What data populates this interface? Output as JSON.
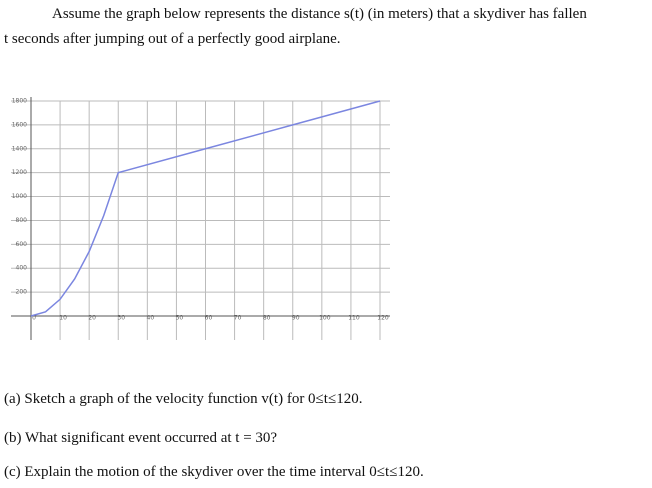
{
  "intro": [
    "Assume the graph below represents the distance s(t) (in meters) that a skydiver has fallen",
    "t seconds after jumping out of a perfectly good airplane."
  ],
  "chart_data": {
    "type": "line",
    "x": [
      0,
      5,
      10,
      15,
      20,
      25,
      30,
      60,
      90,
      120
    ],
    "series": [
      {
        "color": "#7b86e0",
        "values": [
          0,
          35,
          140,
          310,
          540,
          840,
          1200,
          1400,
          1600,
          1800
        ]
      }
    ],
    "xlim": [
      0,
      120
    ],
    "xticks": [
      0,
      10,
      20,
      30,
      40,
      50,
      60,
      70,
      80,
      90,
      100,
      110,
      120
    ],
    "ylim": [
      0,
      1800
    ],
    "yticks": [
      200,
      400,
      600,
      800,
      1000,
      1200,
      1400,
      1600,
      1800
    ],
    "grid": true
  },
  "questions": [
    "(a) Sketch a graph of the velocity function v(t) for 0≤t≤120.",
    "(b) What significant event occurred at t = 30?",
    "(c) Explain the motion of the skydiver over the time interval 0≤t≤120."
  ]
}
